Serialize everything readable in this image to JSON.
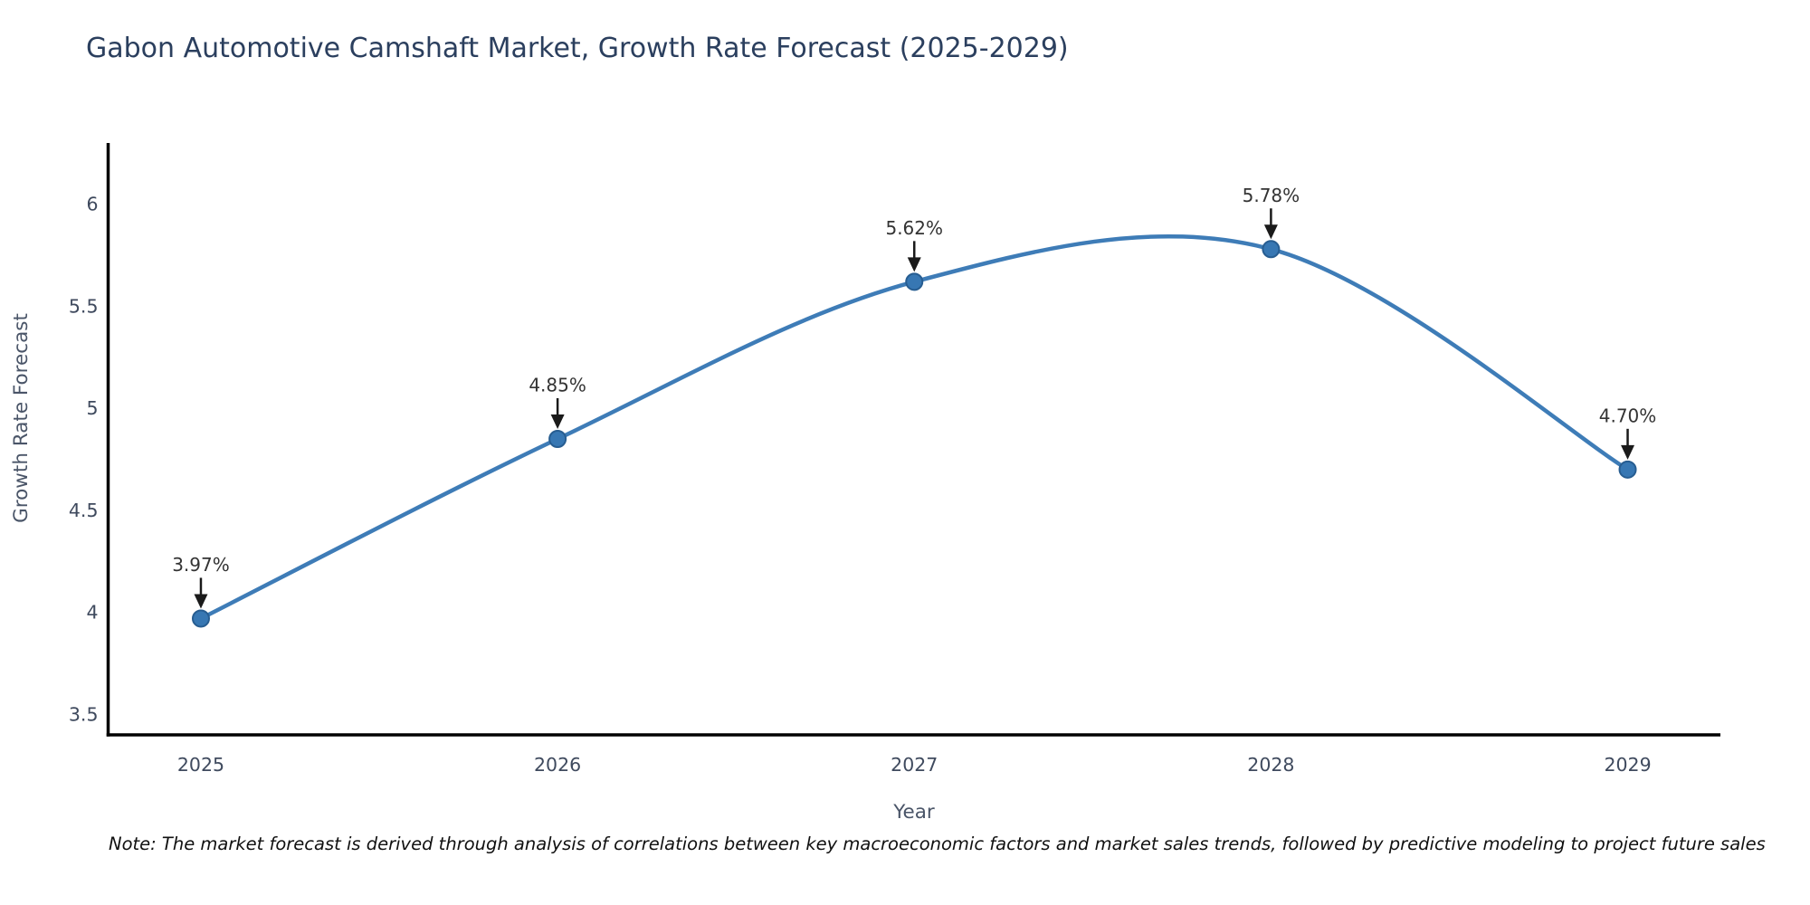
{
  "chart_data": {
    "type": "line",
    "line_shape": "spline",
    "title": "Gabon Automotive Camshaft Market, Growth Rate Forecast (2025-2029)",
    "xlabel": "Year",
    "ylabel": "Growth Rate Forecast",
    "categories": [
      2025,
      2026,
      2027,
      2028,
      2029
    ],
    "values": [
      3.97,
      4.85,
      5.62,
      5.78,
      4.7
    ],
    "point_labels": [
      "3.97%",
      "4.85%",
      "5.62%",
      "5.78%",
      "4.70%"
    ],
    "yticks": [
      6,
      5.5,
      5,
      4.5,
      4,
      3.5
    ],
    "ylim": [
      3.4,
      6.3
    ],
    "xlim": [
      2024.74,
      2029.26
    ],
    "grid": false,
    "legend_position": "none",
    "markers": true,
    "colors": {
      "line": "#3e7cb7",
      "marker": "#3777b3",
      "marker_edge": "#275d91",
      "axis": "#000000",
      "title_text": "#2b3f5e",
      "tick_text": "#3f4a5e",
      "annotation_text": "#333333",
      "arrow": "#1a1a1a",
      "background": "#ffffff"
    }
  },
  "note": {
    "text": "Note: The market forecast is derived through analysis of correlations between key macroeconomic factors and market sales trends, followed by predictive modeling to project future sales"
  }
}
